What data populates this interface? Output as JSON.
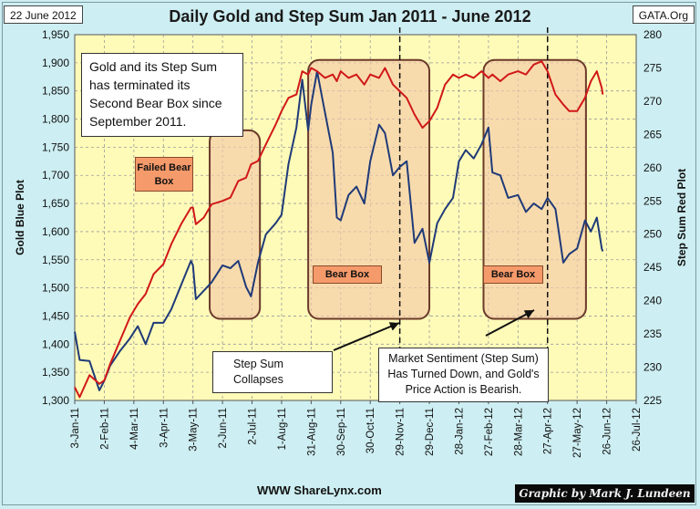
{
  "header": {
    "date": "22 June 2012",
    "title": "Daily Gold and Step Sum Jan 2011 - June 2012",
    "source": "GATA.Org"
  },
  "footer": {
    "website": "WWW ShareLynx.com",
    "credit": "Graphic by Mark J. Lundeen"
  },
  "annotations": {
    "top_note": "Gold and its Step Sum has terminated its Second Bear Box since September 2011.",
    "failed_bear_box": "Failed Bear Box",
    "bear_box_1": "Bear Box",
    "bear_box_2": "Bear Box",
    "step_sum_note": "Step Sum Collapses",
    "sentiment_note": "Market Sentiment (Step Sum) Has Turned Down, and Gold's Price Action is Bearish."
  },
  "colors": {
    "gold_line": "#1f3a78",
    "step_sum_line": "#d01818",
    "plot_bg": "#fefbb8",
    "box_fill": "#f4c9a8",
    "box_border": "#6b3a2a"
  },
  "chart_data": {
    "type": "line",
    "x_tick_labels": [
      "3-Jan-11",
      "2-Feb-11",
      "4-Mar-11",
      "3-Apr-11",
      "3-May-11",
      "2-Jun-11",
      "2-Jul-11",
      "1-Aug-11",
      "31-Aug-11",
      "30-Sep-11",
      "30-Oct-11",
      "29-Nov-11",
      "29-Dec-11",
      "28-Jan-12",
      "27-Feb-12",
      "28-Mar-12",
      "27-Apr-12",
      "27-May-12",
      "26-Jun-12",
      "26-Jul-12"
    ],
    "x_tick_step_days": 30,
    "left_axis": {
      "label": "Gold Blue Plot",
      "range": [
        1300,
        1950
      ],
      "ticks": [
        "1,300",
        "1,350",
        "1,400",
        "1,450",
        "1,500",
        "1,550",
        "1,600",
        "1,650",
        "1,700",
        "1,750",
        "1,800",
        "1,850",
        "1,900",
        "1,950"
      ]
    },
    "right_axis": {
      "label": "Step Sum Red Plot",
      "range": [
        225,
        280
      ],
      "ticks": [
        "225",
        "230",
        "235",
        "240",
        "245",
        "250",
        "255",
        "260",
        "265",
        "270",
        "275",
        "280"
      ]
    },
    "grid": true,
    "series": [
      {
        "name": "Gold Blue Plot",
        "axis": "left",
        "points": [
          [
            "3-Jan-11",
            1422
          ],
          [
            "8-Jan-11",
            1372
          ],
          [
            "18-Jan-11",
            1370
          ],
          [
            "28-Jan-11",
            1318
          ],
          [
            "2-Feb-11",
            1335
          ],
          [
            "8-Feb-11",
            1362
          ],
          [
            "18-Feb-11",
            1388
          ],
          [
            "28-Feb-11",
            1410
          ],
          [
            "8-Mar-11",
            1432
          ],
          [
            "16-Mar-11",
            1400
          ],
          [
            "24-Mar-11",
            1438
          ],
          [
            "3-Apr-11",
            1438
          ],
          [
            "11-Apr-11",
            1462
          ],
          [
            "21-Apr-11",
            1505
          ],
          [
            "1-May-11",
            1548
          ],
          [
            "3-May-11",
            1540
          ],
          [
            "6-May-11",
            1480
          ],
          [
            "14-May-11",
            1495
          ],
          [
            "22-May-11",
            1510
          ],
          [
            "2-Jun-11",
            1540
          ],
          [
            "10-Jun-11",
            1535
          ],
          [
            "18-Jun-11",
            1548
          ],
          [
            "26-Jun-11",
            1502
          ],
          [
            "1-Jul-11",
            1485
          ],
          [
            "8-Jul-11",
            1545
          ],
          [
            "16-Jul-11",
            1595
          ],
          [
            "26-Jul-11",
            1615
          ],
          [
            "1-Aug-11",
            1630
          ],
          [
            "8-Aug-11",
            1720
          ],
          [
            "16-Aug-11",
            1785
          ],
          [
            "22-Aug-11",
            1870
          ],
          [
            "28-Aug-11",
            1780
          ],
          [
            "31-Aug-11",
            1825
          ],
          [
            "6-Sep-11",
            1885
          ],
          [
            "14-Sep-11",
            1812
          ],
          [
            "22-Sep-11",
            1740
          ],
          [
            "26-Sep-11",
            1625
          ],
          [
            "30-Sep-11",
            1620
          ],
          [
            "8-Oct-11",
            1665
          ],
          [
            "16-Oct-11",
            1680
          ],
          [
            "24-Oct-11",
            1650
          ],
          [
            "30-Oct-11",
            1725
          ],
          [
            "8-Nov-11",
            1790
          ],
          [
            "14-Nov-11",
            1775
          ],
          [
            "22-Nov-11",
            1700
          ],
          [
            "29-Nov-11",
            1715
          ],
          [
            "6-Dec-11",
            1725
          ],
          [
            "14-Dec-11",
            1580
          ],
          [
            "22-Dec-11",
            1605
          ],
          [
            "29-Dec-11",
            1545
          ],
          [
            "6-Jan-12",
            1615
          ],
          [
            "14-Jan-12",
            1640
          ],
          [
            "22-Jan-12",
            1660
          ],
          [
            "28-Jan-12",
            1725
          ],
          [
            "4-Feb-12",
            1745
          ],
          [
            "12-Feb-12",
            1730
          ],
          [
            "20-Feb-12",
            1755
          ],
          [
            "27-Feb-12",
            1785
          ],
          [
            "2-Mar-12",
            1705
          ],
          [
            "10-Mar-12",
            1700
          ],
          [
            "18-Mar-12",
            1660
          ],
          [
            "28-Mar-12",
            1665
          ],
          [
            "5-Apr-12",
            1635
          ],
          [
            "13-Apr-12",
            1650
          ],
          [
            "21-Apr-12",
            1640
          ],
          [
            "27-Apr-12",
            1660
          ],
          [
            "5-May-12",
            1640
          ],
          [
            "13-May-12",
            1545
          ],
          [
            "19-May-12",
            1560
          ],
          [
            "27-May-12",
            1570
          ],
          [
            "4-Jun-12",
            1620
          ],
          [
            "10-Jun-12",
            1600
          ],
          [
            "16-Jun-12",
            1625
          ],
          [
            "21-Jun-12",
            1570
          ],
          [
            "22-Jun-12",
            1565
          ]
        ]
      },
      {
        "name": "Step Sum Red Plot",
        "axis": "right",
        "points": [
          [
            "3-Jan-11",
            227.0
          ],
          [
            "8-Jan-11",
            225.5
          ],
          [
            "18-Jan-11",
            228.8
          ],
          [
            "28-Jan-11",
            227.5
          ],
          [
            "2-Feb-11",
            228.0
          ],
          [
            "8-Feb-11",
            230.5
          ],
          [
            "18-Feb-11",
            234.0
          ],
          [
            "28-Feb-11",
            237.5
          ],
          [
            "8-Mar-11",
            239.5
          ],
          [
            "16-Mar-11",
            241.0
          ],
          [
            "24-Mar-11",
            244.0
          ],
          [
            "3-Apr-11",
            245.5
          ],
          [
            "11-Apr-11",
            248.5
          ],
          [
            "21-Apr-11",
            251.5
          ],
          [
            "1-May-11",
            254.0
          ],
          [
            "3-May-11",
            254.0
          ],
          [
            "6-May-11",
            251.5
          ],
          [
            "14-May-11",
            252.5
          ],
          [
            "22-May-11",
            254.5
          ],
          [
            "2-Jun-11",
            255.0
          ],
          [
            "10-Jun-11",
            255.5
          ],
          [
            "18-Jun-11",
            258.0
          ],
          [
            "26-Jun-11",
            258.5
          ],
          [
            "1-Jul-11",
            260.5
          ],
          [
            "8-Jul-11",
            261.0
          ],
          [
            "16-Jul-11",
            263.5
          ],
          [
            "26-Jul-11",
            266.5
          ],
          [
            "1-Aug-11",
            268.5
          ],
          [
            "8-Aug-11",
            270.5
          ],
          [
            "16-Aug-11",
            271.0
          ],
          [
            "22-Aug-11",
            274.5
          ],
          [
            "28-Aug-11",
            274.0
          ],
          [
            "31-Aug-11",
            275.0
          ],
          [
            "6-Sep-11",
            274.5
          ],
          [
            "14-Sep-11",
            273.5
          ],
          [
            "22-Sep-11",
            274.0
          ],
          [
            "26-Sep-11",
            273.0
          ],
          [
            "30-Sep-11",
            274.5
          ],
          [
            "8-Oct-11",
            273.5
          ],
          [
            "16-Oct-11",
            274.0
          ],
          [
            "24-Oct-11",
            272.5
          ],
          [
            "30-Oct-11",
            274.0
          ],
          [
            "8-Nov-11",
            273.5
          ],
          [
            "14-Nov-11",
            275.0
          ],
          [
            "22-Nov-11",
            272.5
          ],
          [
            "29-Nov-11",
            271.5
          ],
          [
            "6-Dec-11",
            270.5
          ],
          [
            "14-Dec-11",
            268.0
          ],
          [
            "22-Dec-11",
            266.0
          ],
          [
            "29-Dec-11",
            267.0
          ],
          [
            "6-Jan-12",
            269.0
          ],
          [
            "14-Jan-12",
            272.5
          ],
          [
            "22-Jan-12",
            274.0
          ],
          [
            "28-Jan-12",
            273.5
          ],
          [
            "4-Feb-12",
            274.0
          ],
          [
            "12-Feb-12",
            273.5
          ],
          [
            "20-Feb-12",
            274.5
          ],
          [
            "27-Feb-12",
            273.5
          ],
          [
            "2-Mar-12",
            274.0
          ],
          [
            "10-Mar-12",
            273.0
          ],
          [
            "18-Mar-12",
            274.0
          ],
          [
            "28-Mar-12",
            274.5
          ],
          [
            "5-Apr-12",
            274.0
          ],
          [
            "13-Apr-12",
            275.5
          ],
          [
            "21-Apr-12",
            276.0
          ],
          [
            "27-Apr-12",
            274.5
          ],
          [
            "5-May-12",
            271.0
          ],
          [
            "13-May-12",
            269.5
          ],
          [
            "19-May-12",
            268.5
          ],
          [
            "27-May-12",
            268.5
          ],
          [
            "4-Jun-12",
            270.5
          ],
          [
            "10-Jun-12",
            273.0
          ],
          [
            "16-Jun-12",
            274.5
          ],
          [
            "21-Jun-12",
            272.0
          ],
          [
            "22-Jun-12",
            271.0
          ]
        ]
      }
    ],
    "bear_boxes": [
      {
        "label": "Failed Bear Box",
        "from": "20-May-11",
        "to": "10-Jul-11",
        "low": 1445,
        "high": 1780
      },
      {
        "label": "Bear Box",
        "from": "28-Aug-11",
        "to": "29-Dec-11",
        "low": 1445,
        "high": 1905
      },
      {
        "label": "Bear Box",
        "from": "22-Feb-12",
        "to": "5-Jun-12",
        "low": 1445,
        "high": 1905
      }
    ],
    "reference_lines": [
      "29-Nov-11",
      "27-Apr-12"
    ]
  }
}
